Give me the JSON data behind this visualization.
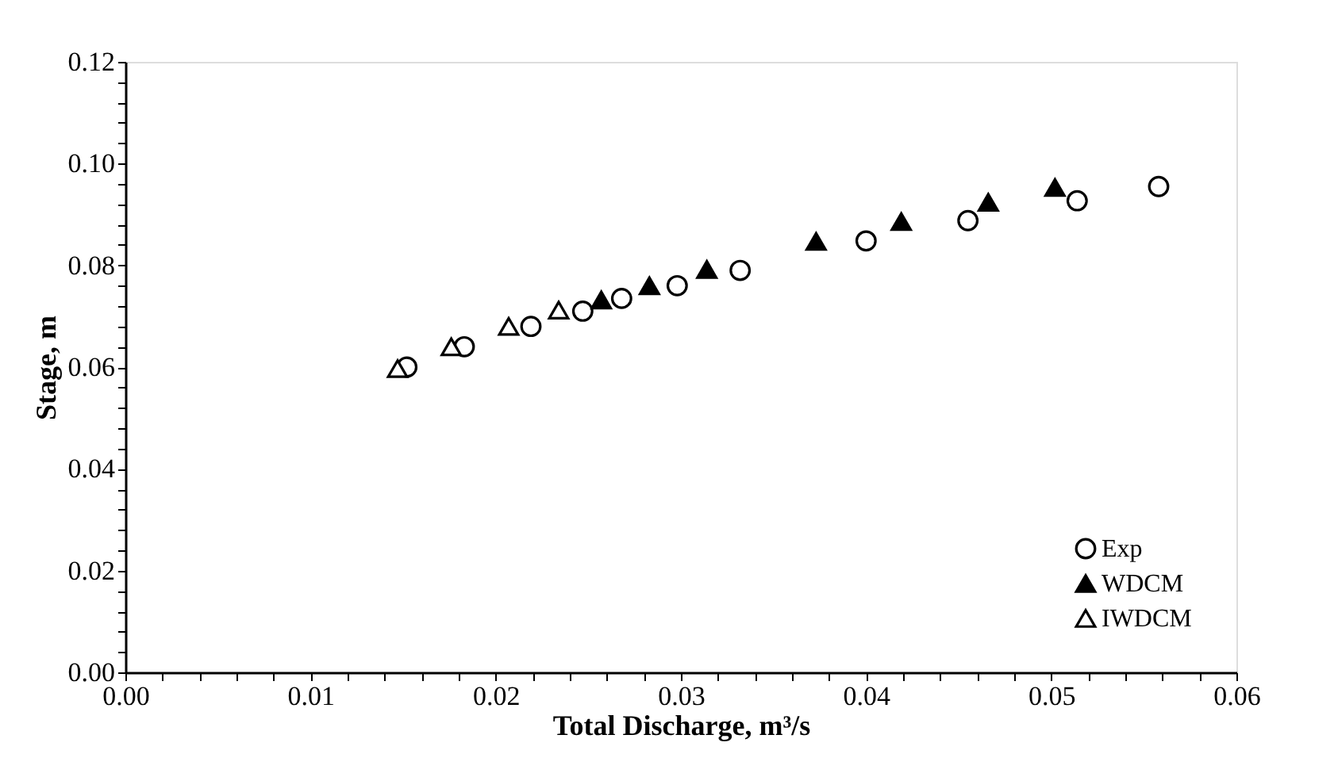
{
  "chart_data": {
    "type": "scatter",
    "xlabel": "Total Discharge, m³/s",
    "ylabel": "Stage, m",
    "xlim": [
      0,
      0.06
    ],
    "ylim": [
      0,
      0.12
    ],
    "xticks": [
      {
        "value": 0,
        "label": "0.00"
      },
      {
        "value": 0.002,
        "label": null
      },
      {
        "value": 0.004,
        "label": null
      },
      {
        "value": 0.006,
        "label": null
      },
      {
        "value": 0.008,
        "label": null
      },
      {
        "value": 0.01,
        "label": "0.01"
      },
      {
        "value": 0.012,
        "label": null
      },
      {
        "value": 0.014,
        "label": null
      },
      {
        "value": 0.016,
        "label": null
      },
      {
        "value": 0.018,
        "label": null
      },
      {
        "value": 0.02,
        "label": "0.02"
      },
      {
        "value": 0.022,
        "label": null
      },
      {
        "value": 0.024,
        "label": null
      },
      {
        "value": 0.026,
        "label": null
      },
      {
        "value": 0.028,
        "label": null
      },
      {
        "value": 0.03,
        "label": "0.03"
      },
      {
        "value": 0.032,
        "label": null
      },
      {
        "value": 0.034,
        "label": null
      },
      {
        "value": 0.036,
        "label": null
      },
      {
        "value": 0.038,
        "label": null
      },
      {
        "value": 0.04,
        "label": "0.04"
      },
      {
        "value": 0.042,
        "label": null
      },
      {
        "value": 0.044,
        "label": null
      },
      {
        "value": 0.046,
        "label": null
      },
      {
        "value": 0.048,
        "label": null
      },
      {
        "value": 0.05,
        "label": "0.05"
      },
      {
        "value": 0.052,
        "label": null
      },
      {
        "value": 0.054,
        "label": null
      },
      {
        "value": 0.056,
        "label": null
      },
      {
        "value": 0.058,
        "label": null
      },
      {
        "value": 0.06,
        "label": "0.06"
      }
    ],
    "yticks": [
      {
        "value": 0,
        "label": "0.00"
      },
      {
        "value": 0.004,
        "label": null
      },
      {
        "value": 0.008,
        "label": null
      },
      {
        "value": 0.012,
        "label": null
      },
      {
        "value": 0.016,
        "label": null
      },
      {
        "value": 0.02,
        "label": "0.02"
      },
      {
        "value": 0.024,
        "label": null
      },
      {
        "value": 0.028,
        "label": null
      },
      {
        "value": 0.032,
        "label": null
      },
      {
        "value": 0.036,
        "label": null
      },
      {
        "value": 0.04,
        "label": "0.04"
      },
      {
        "value": 0.044,
        "label": null
      },
      {
        "value": 0.048,
        "label": null
      },
      {
        "value": 0.052,
        "label": null
      },
      {
        "value": 0.056,
        "label": null
      },
      {
        "value": 0.06,
        "label": "0.06"
      },
      {
        "value": 0.064,
        "label": null
      },
      {
        "value": 0.068,
        "label": null
      },
      {
        "value": 0.072,
        "label": null
      },
      {
        "value": 0.076,
        "label": null
      },
      {
        "value": 0.08,
        "label": "0.08"
      },
      {
        "value": 0.084,
        "label": null
      },
      {
        "value": 0.088,
        "label": null
      },
      {
        "value": 0.092,
        "label": null
      },
      {
        "value": 0.096,
        "label": null
      },
      {
        "value": 0.1,
        "label": "0.10"
      },
      {
        "value": 0.104,
        "label": null
      },
      {
        "value": 0.108,
        "label": null
      },
      {
        "value": 0.112,
        "label": null
      },
      {
        "value": 0.116,
        "label": null
      },
      {
        "value": 0.12,
        "label": "0.12"
      }
    ],
    "grid": false,
    "legend": "bottom right",
    "series": [
      {
        "name": "Exp",
        "color": "#ffffff",
        "marker": "circle",
        "x": [
          0.0152,
          0.0183,
          0.0219,
          0.0247,
          0.0268,
          0.0298,
          0.0332,
          0.04,
          0.0455,
          0.0514,
          0.0558
        ],
        "values": [
          0.06,
          0.064,
          0.068,
          0.071,
          0.0735,
          0.076,
          0.079,
          0.0848,
          0.0888,
          0.0927,
          0.0955
        ]
      },
      {
        "name": "WDCM",
        "color": "#000000",
        "marker": "triangle",
        "x": [
          0.0257,
          0.0283,
          0.0314,
          0.0373,
          0.0419,
          0.0466,
          0.0502
        ],
        "values": [
          0.0732,
          0.076,
          0.0792,
          0.0847,
          0.0886,
          0.0924,
          0.0953
        ]
      },
      {
        "name": "IWDCM",
        "color": "#ffffff",
        "marker": "triangle",
        "x": [
          0.0147,
          0.0176,
          0.0207,
          0.0234
        ],
        "values": [
          0.0597,
          0.064,
          0.068,
          0.0712
        ]
      }
    ]
  }
}
